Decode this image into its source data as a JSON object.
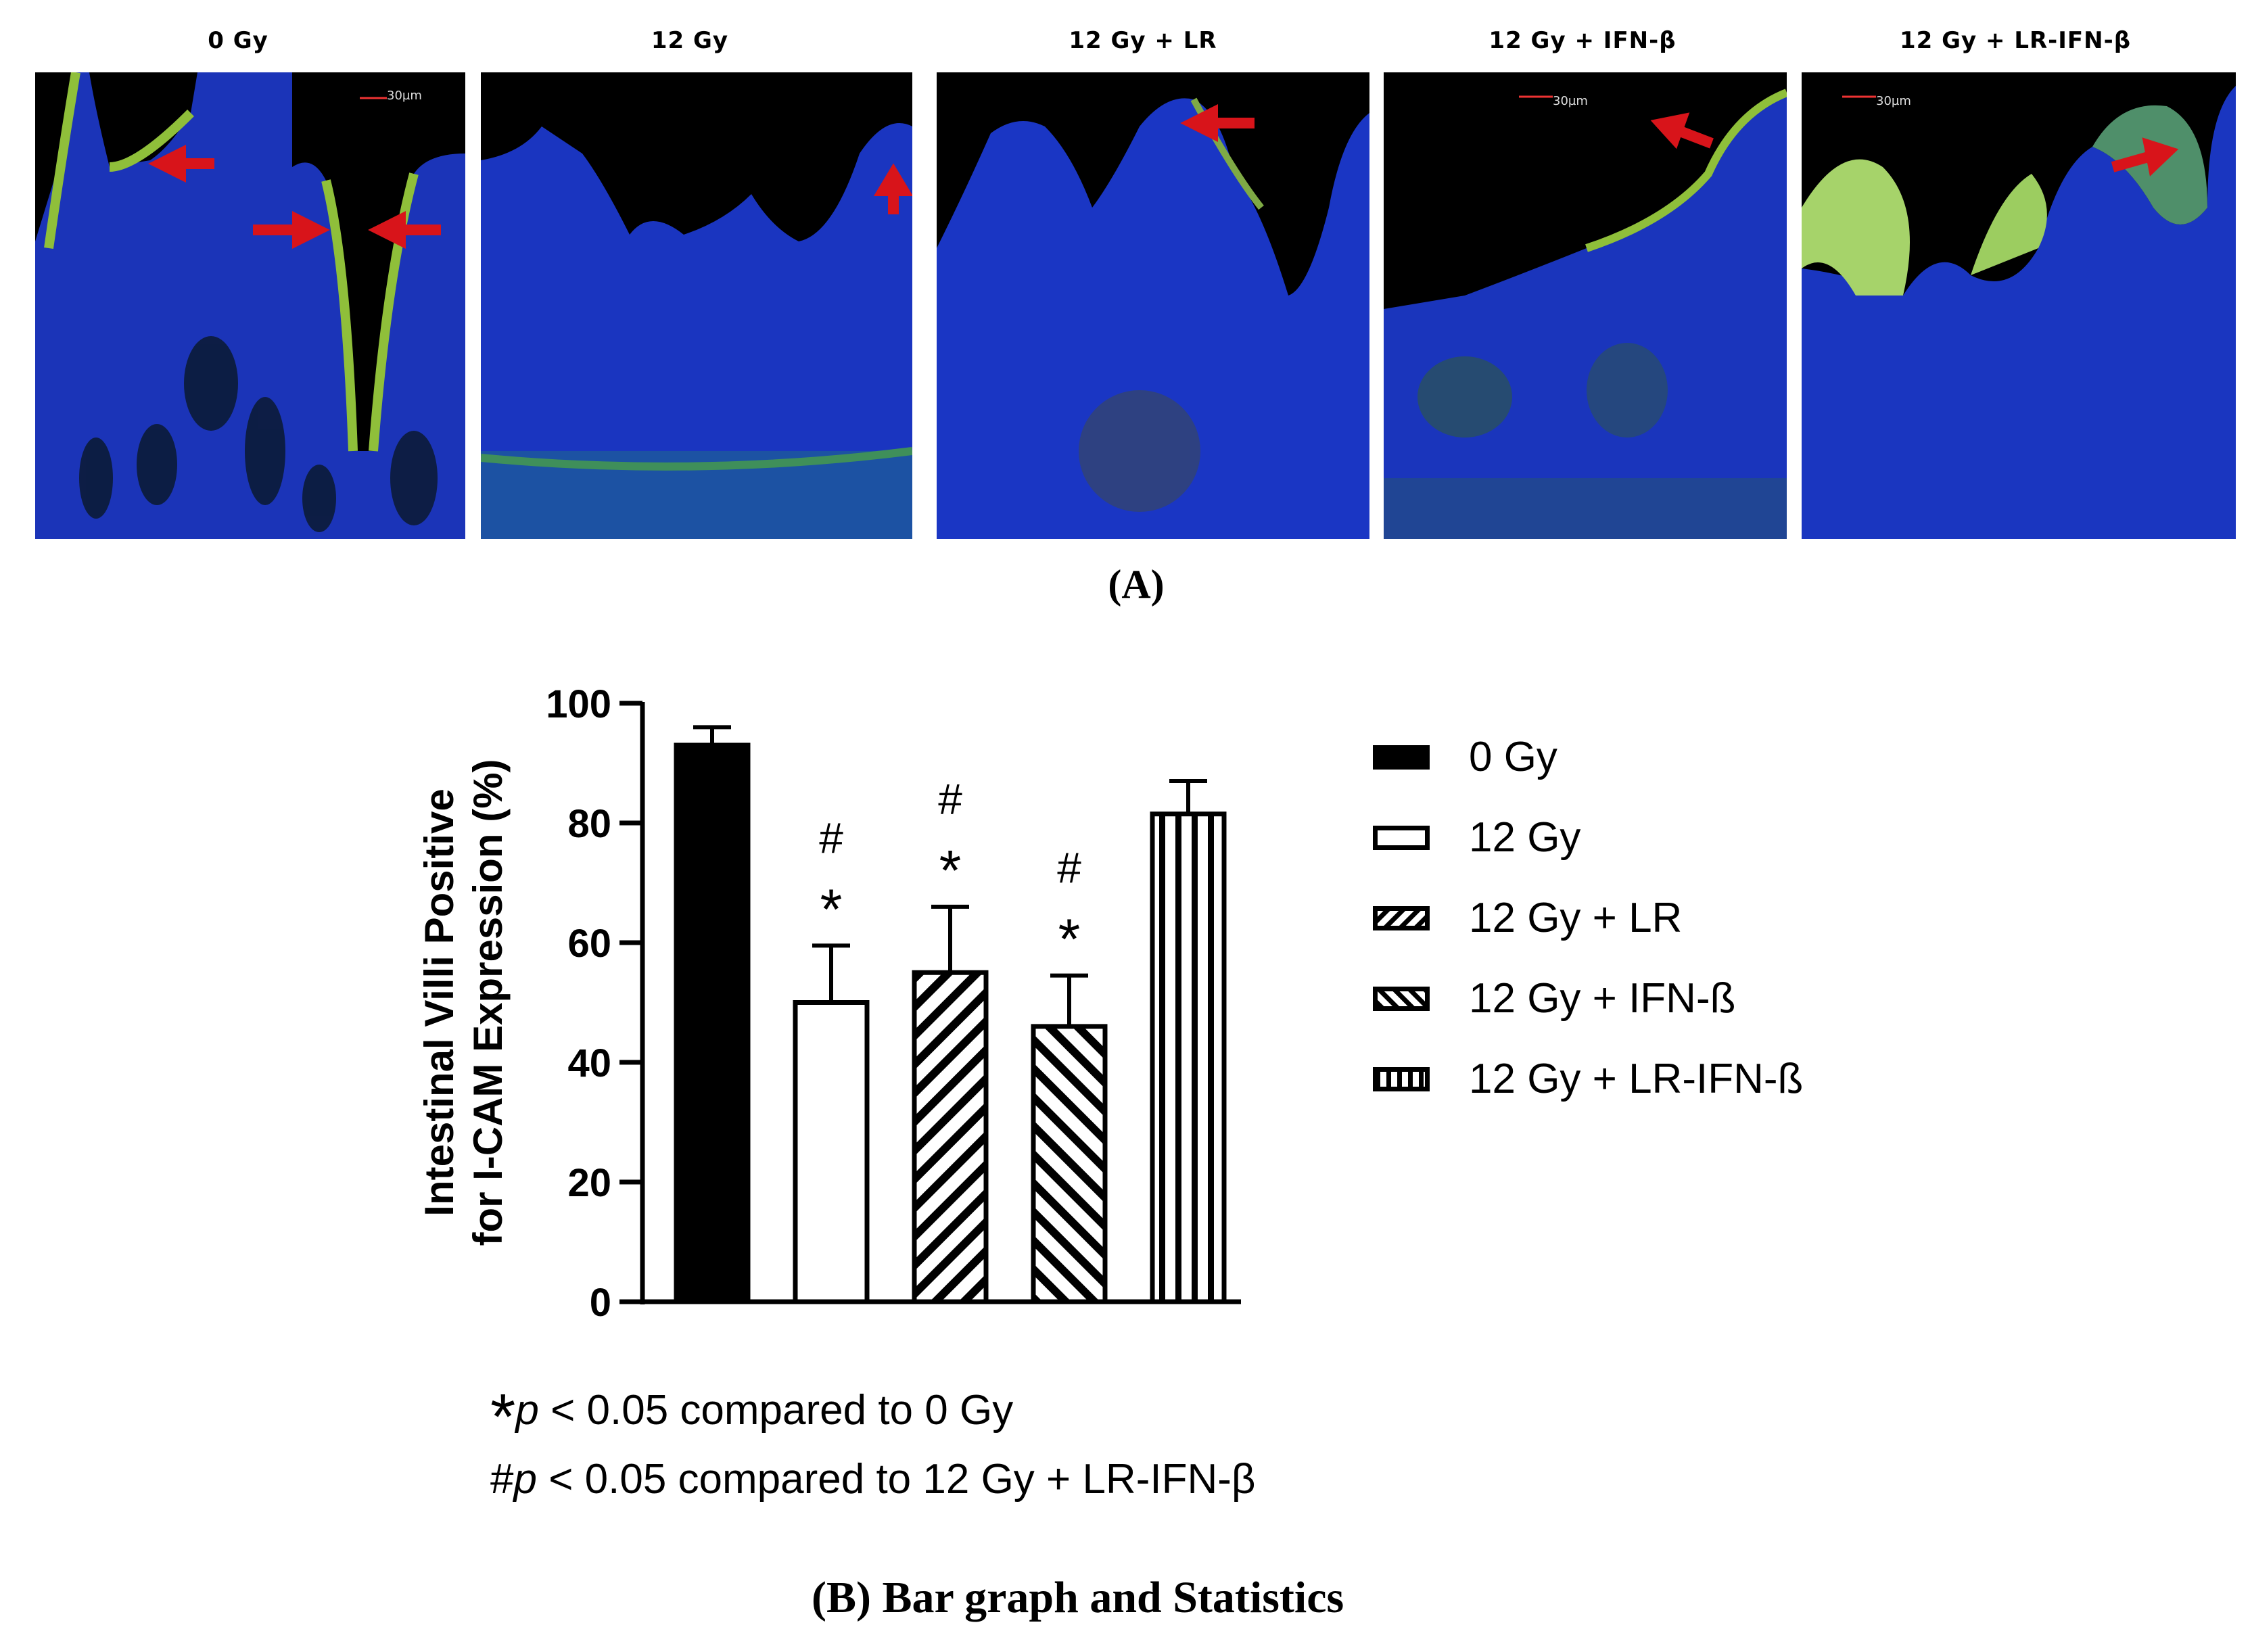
{
  "panel_a": {
    "caption": "(A)",
    "panels": [
      {
        "label": "0 Gy",
        "scale_bar": "30µm"
      },
      {
        "label": "12 Gy",
        "scale_bar": ""
      },
      {
        "label": "12 Gy + LR",
        "scale_bar": ""
      },
      {
        "label": "12 Gy + IFN-β",
        "scale_bar": "30µm"
      },
      {
        "label": "12 Gy + LR-IFN-β",
        "scale_bar": "30µm"
      }
    ]
  },
  "chart_data": {
    "type": "bar",
    "title": "",
    "ylabel_line1": "Intestinal Villi Positive",
    "ylabel_line2": "for I-CAM Expression (%)",
    "xlabel": "",
    "ylim": [
      0,
      100
    ],
    "yticks": [
      0,
      20,
      40,
      60,
      80,
      100
    ],
    "categories": [
      "0 Gy",
      "12 Gy",
      "12 Gy + LR",
      "12 Gy + IFN-ß",
      "12 Gy + LR-IFN-ß"
    ],
    "values": [
      93,
      50,
      55,
      46,
      81.5
    ],
    "error": [
      3,
      9.5,
      11,
      8.5,
      5.5
    ],
    "annotations": [
      {
        "category": "12 Gy",
        "marks": [
          "#",
          "*"
        ]
      },
      {
        "category": "12 Gy + LR",
        "marks": [
          "#",
          "*"
        ]
      },
      {
        "category": "12 Gy + IFN-ß",
        "marks": [
          "#",
          "*"
        ]
      }
    ],
    "patterns": [
      "solid",
      "open",
      "diagonal-down",
      "diagonal-up",
      "vertical"
    ],
    "legend_position": "right"
  },
  "notes": {
    "line1_star": "*",
    "line1_p": "p",
    "line1_rest": " < 0.05 compared to 0 Gy",
    "line2_hash": "#",
    "line2_p": "p",
    "line2_rest": " < 0.05 compared to 12 Gy + LR-IFN-β"
  },
  "panel_b": {
    "caption_letter": "(B)",
    "caption_text": " Bar graph and Statistics"
  }
}
